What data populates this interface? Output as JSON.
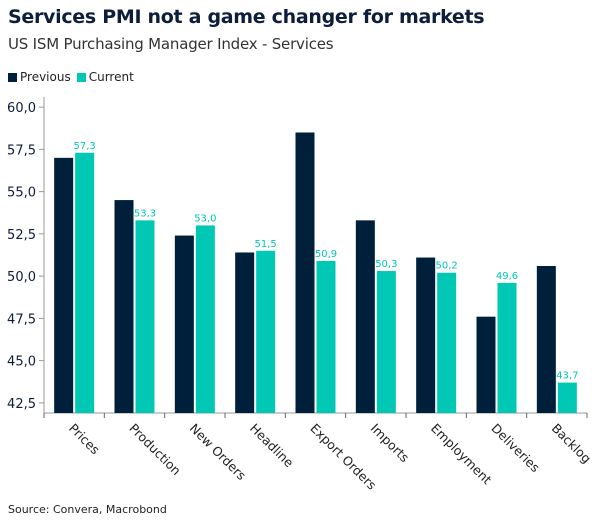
{
  "colors": {
    "previous": "#001f3a",
    "current": "#00c8b4",
    "axis": "#999999",
    "title": "#0c1e3a"
  },
  "chart_data": {
    "type": "bar",
    "title": "Services PMI not a game changer for markets",
    "subtitle": "US ISM Purchasing Manager Index - Services",
    "categories": [
      "Prices",
      "Production",
      "New Orders",
      "Headline",
      "Export Orders",
      "Imports",
      "Employment",
      "Deliveries",
      "Backlog"
    ],
    "series": [
      {
        "name": "Previous",
        "values": [
          57.0,
          54.5,
          52.4,
          51.4,
          58.5,
          53.3,
          51.1,
          47.6,
          50.6
        ]
      },
      {
        "name": "Current",
        "values": [
          57.3,
          53.3,
          53.0,
          51.5,
          50.9,
          50.3,
          50.2,
          49.6,
          43.7
        ],
        "data_labels": [
          "57,3",
          "53,3",
          "53,0",
          "51,5",
          "50,9",
          "50,3",
          "50,2",
          "49,6",
          "43,7"
        ]
      }
    ],
    "yticks": [
      "42,5",
      "45,0",
      "47,5",
      "50,0",
      "52,5",
      "55,0",
      "57,5",
      "60,0"
    ],
    "ytick_values": [
      42.5,
      45,
      47.5,
      50,
      52.5,
      55,
      57.5,
      60
    ],
    "ylim": [
      41.9,
      60.6
    ],
    "grid": false,
    "legend_position": "top-left",
    "source": "Source: Convera, Macrobond"
  }
}
